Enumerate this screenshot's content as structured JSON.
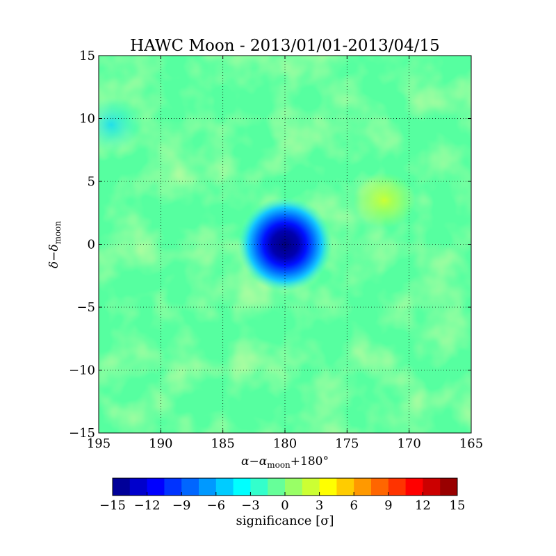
{
  "chart_data": {
    "type": "heatmap",
    "title": "HAWC Moon - 2013/01/01-2013/04/15",
    "xlabel": "α−α",
    "xlabel_sub": "moon",
    "xlabel_suffix": "+180°",
    "ylabel": "δ−δ",
    "ylabel_sub": "moon",
    "xlim": [
      195,
      165
    ],
    "ylim": [
      -15,
      15
    ],
    "xticks": [
      195,
      190,
      185,
      180,
      175,
      170,
      165
    ],
    "yticks": [
      15,
      10,
      5,
      0,
      -5,
      -10,
      -15
    ],
    "xtick_labels": [
      "195",
      "190",
      "185",
      "180",
      "175",
      "170",
      "165"
    ],
    "ytick_labels": [
      "15",
      "10",
      "5",
      "0",
      "−5",
      "−10",
      "−15"
    ],
    "grid": true,
    "colormap": "jet",
    "background_significance": "approximately -2 to +4 σ fluctuations",
    "deficit": {
      "x": 180,
      "y": 0,
      "min_significance": -15,
      "description": "Moon shadow deficit centered at (180, 0)"
    },
    "features": [
      {
        "x": 172,
        "y": 3.5,
        "significance": 4
      },
      {
        "x": 194,
        "y": 9.5,
        "significance": -3
      }
    ],
    "colorbar": {
      "label": "significance [σ]",
      "min": -15,
      "max": 15,
      "levels": 20,
      "tick_values": [
        -15,
        -12,
        -9,
        -6,
        -3,
        0,
        3,
        6,
        9,
        12,
        15
      ],
      "tick_labels": [
        "−15",
        "−12",
        "−9",
        "−6",
        "−3",
        "0",
        "3",
        "6",
        "9",
        "12",
        "15"
      ]
    }
  }
}
